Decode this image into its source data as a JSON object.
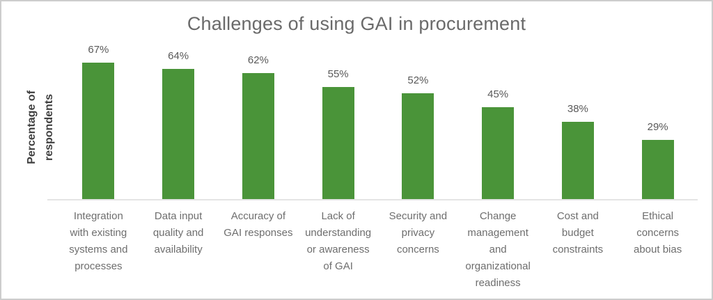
{
  "chart_data": {
    "type": "bar",
    "title": "Challenges of using GAI in procurement",
    "xlabel": "",
    "ylabel": "Percentage of respondents",
    "categories": [
      "Integration with existing systems and processes",
      "Data input quality and availability",
      "Accuracy of GAI responses",
      "Lack of understanding or awareness of GAI",
      "Security and privacy concerns",
      "Change management and organizational readiness",
      "Cost and budget constraints",
      "Ethical concerns about bias"
    ],
    "category_display": [
      "Integration\nwith existing\nsystems and\nprocesses",
      "Data input\nquality and\navailability",
      "Accuracy of\nGAI responses",
      "Lack of\nunderstanding\nor awareness\nof GAI",
      "Security and\nprivacy\nconcerns",
      "Change\nmanagement\nand\norganizational\nreadiness",
      "Cost and\nbudget\nconstraints",
      "Ethical\nconcerns\nabout bias"
    ],
    "values": [
      67,
      64,
      62,
      55,
      52,
      45,
      38,
      29
    ],
    "value_labels": [
      "67%",
      "64%",
      "62%",
      "55%",
      "52%",
      "45%",
      "38%",
      "29%"
    ],
    "bar_color": "#4a9439",
    "ylim": [
      0,
      77
    ],
    "grid": false,
    "legend": false,
    "y_axis_tick_labels_visible": false,
    "data_labels_position": "above bars"
  }
}
